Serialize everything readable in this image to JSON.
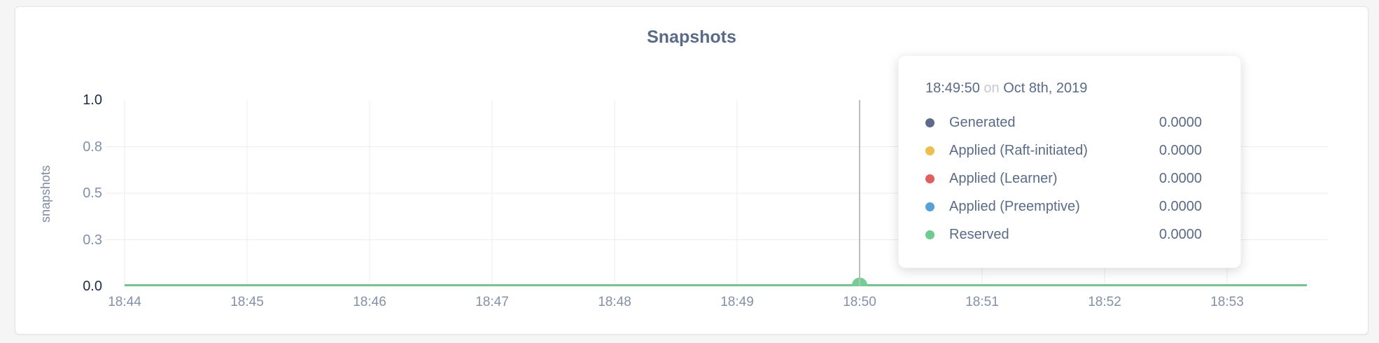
{
  "card": {
    "background": "#ffffff"
  },
  "chart_data": {
    "type": "line",
    "title": "Snapshots",
    "xlabel": "",
    "ylabel": "snapshots",
    "x_ticks": [
      "18:44",
      "18:45",
      "18:46",
      "18:47",
      "18:48",
      "18:49",
      "18:50",
      "18:51",
      "18:52",
      "18:53"
    ],
    "y_ticks": [
      "0.0",
      "0.3",
      "0.5",
      "0.8",
      "1.0"
    ],
    "ylim": [
      0,
      1
    ],
    "grid": true,
    "gridline_color": "#ededed",
    "series": [
      {
        "name": "Generated",
        "color": "#5d6b88",
        "values": [
          0,
          0,
          0,
          0,
          0,
          0,
          0,
          0,
          0,
          0
        ]
      },
      {
        "name": "Applied (Raft-initiated)",
        "color": "#ecbf4e",
        "values": [
          0,
          0,
          0,
          0,
          0,
          0,
          0,
          0,
          0,
          0
        ]
      },
      {
        "name": "Applied (Learner)",
        "color": "#e25f5f",
        "values": [
          0,
          0,
          0,
          0,
          0,
          0,
          0,
          0,
          0,
          0
        ]
      },
      {
        "name": "Applied (Preemptive)",
        "color": "#57a1d8",
        "values": [
          0,
          0,
          0,
          0,
          0,
          0,
          0,
          0,
          0,
          0
        ]
      },
      {
        "name": "Reserved",
        "color": "#6fcb8d",
        "values": [
          0,
          0,
          0,
          0,
          0,
          0,
          0,
          0,
          0,
          0
        ]
      }
    ],
    "hover": {
      "x_tick": "18:50",
      "tick_index": 6,
      "line_color": "#bdbdbd",
      "point_color": "#74ce92"
    }
  },
  "tooltip": {
    "time": "18:49:50",
    "on_word": "on",
    "date": "Oct 8th, 2019",
    "rows": [
      {
        "label": "Generated",
        "color": "#5d6b88",
        "value": "0.0000"
      },
      {
        "label": "Applied (Raft-initiated)",
        "color": "#ecbf4e",
        "value": "0.0000"
      },
      {
        "label": "Applied (Learner)",
        "color": "#e25f5f",
        "value": "0.0000"
      },
      {
        "label": "Applied (Preemptive)",
        "color": "#57a1d8",
        "value": "0.0000"
      },
      {
        "label": "Reserved",
        "color": "#6fcb8d",
        "value": "0.0000"
      }
    ]
  }
}
